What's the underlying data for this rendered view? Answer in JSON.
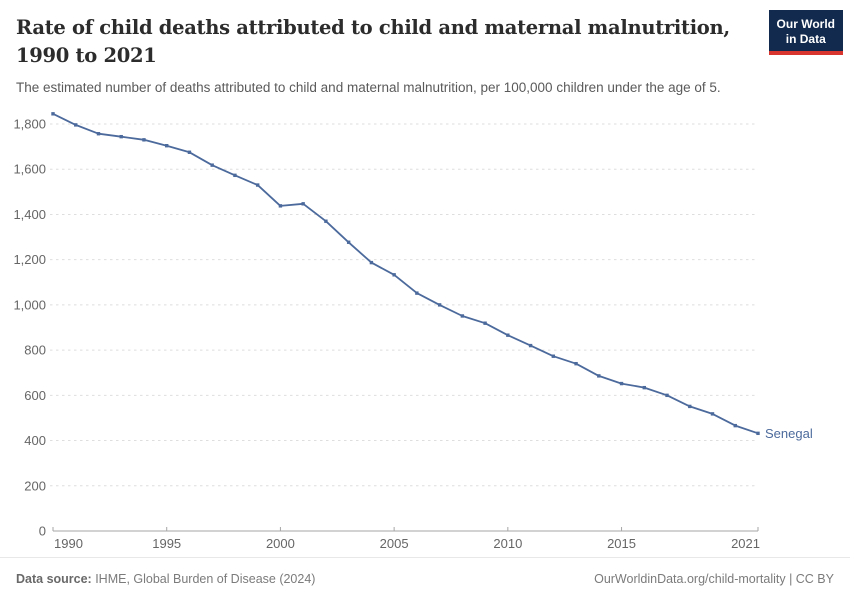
{
  "header": {
    "title_line1": "Rate of child deaths attributed to child and maternal malnutrition,",
    "title_line2": "1990 to 2021",
    "subtitle": "The estimated number of deaths attributed to child and maternal malnutrition, per 100,000 children under the age of 5.",
    "logo": {
      "line1": "Our World",
      "line2": "in Data",
      "bg_color": "#122a4e",
      "accent_color": "#d8352e"
    }
  },
  "chart_data": {
    "type": "line",
    "title": "Rate of child deaths attributed to child and maternal malnutrition, 1990 to 2021",
    "subtitle": "The estimated number of deaths attributed to child and maternal malnutrition, per 100,000 children under the age of 5.",
    "xlabel": "",
    "ylabel": "",
    "xlim": [
      1990,
      2021
    ],
    "ylim": [
      0,
      1900
    ],
    "x_ticks": [
      1990,
      1995,
      2000,
      2005,
      2010,
      2015,
      2021
    ],
    "y_ticks": [
      0,
      200,
      400,
      600,
      800,
      1000,
      1200,
      1400,
      1600,
      1800
    ],
    "grid": "horizontal-dashed",
    "legend_position": "end-of-line-label",
    "series": [
      {
        "name": "Senegal",
        "color": "#4c6a9c",
        "x": [
          1990,
          1991,
          1992,
          1993,
          1994,
          1995,
          1996,
          1997,
          1998,
          1999,
          2000,
          2001,
          2002,
          2003,
          2004,
          2005,
          2006,
          2007,
          2008,
          2009,
          2010,
          2011,
          2012,
          2013,
          2014,
          2015,
          2016,
          2017,
          2018,
          2019,
          2020,
          2021
        ],
        "values": [
          1845,
          1796,
          1757,
          1744,
          1730,
          1704,
          1675,
          1618,
          1573,
          1530,
          1438,
          1447,
          1370,
          1277,
          1187,
          1133,
          1052,
          1000,
          951,
          919,
          866,
          820,
          773,
          740,
          686,
          652,
          634,
          600,
          551,
          518,
          466,
          432
        ]
      }
    ]
  },
  "footer": {
    "source_label": "Data source:",
    "source_text": " IHME, Global Burden of Disease (2024)",
    "credit": "OurWorldinData.org/child-mortality | CC BY"
  },
  "colors": {
    "line": "#4c6a9c",
    "grid": "#dedede",
    "axis": "#a6a6a6",
    "tick_text": "#666666",
    "title_text": "#2c2c2c"
  }
}
